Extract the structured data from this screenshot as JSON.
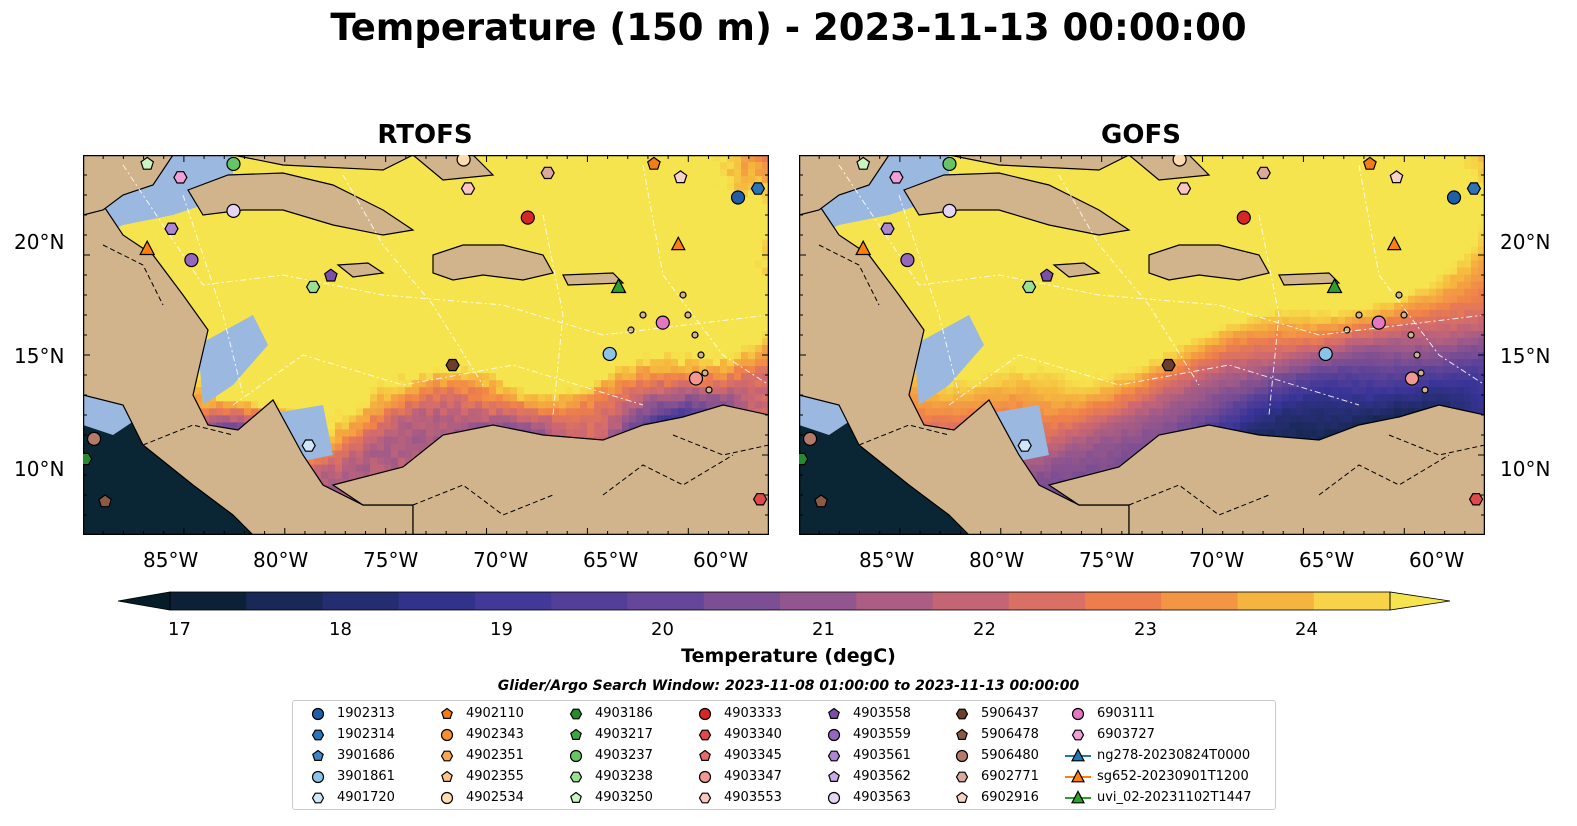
{
  "title": "Temperature (150 m) - 2023-11-13 00:00:00",
  "panels": [
    {
      "title": "RTOFS",
      "variant": "rtofs"
    },
    {
      "title": "GOFS",
      "variant": "gofs"
    }
  ],
  "x_ticks": [
    "85°W",
    "80°W",
    "75°W",
    "70°W",
    "65°W",
    "60°W"
  ],
  "y_ticks": [
    "20°N",
    "15°N",
    "10°N"
  ],
  "colorbar": {
    "label": "Temperature (degC)",
    "ticks": [
      "17",
      "18",
      "19",
      "20",
      "21",
      "22",
      "23",
      "24"
    ],
    "vmin": 16.5,
    "vmax": 24.5,
    "extend": "both"
  },
  "colors": {
    "land": "#d2b48c",
    "shallow": "#9ab8e0",
    "cold": "#0a2534",
    "warm": "#f6e04e"
  },
  "search_window": "Glider/Argo Search Window: 2023-11-08 01:00:00 to 2023-11-13 00:00:00",
  "legend": [
    {
      "label": "1902313",
      "marker": "circle",
      "color": "#1f5fa8"
    },
    {
      "label": "1902314",
      "marker": "hexagon",
      "color": "#2a74b8"
    },
    {
      "label": "3901686",
      "marker": "pentagon",
      "color": "#3b86c8"
    },
    {
      "label": "3901861",
      "marker": "circle",
      "color": "#8cc3e8"
    },
    {
      "label": "4901720",
      "marker": "hexagon",
      "color": "#cfe6f8"
    },
    {
      "label": "4902110",
      "marker": "pentagon",
      "color": "#f07d1a"
    },
    {
      "label": "4902343",
      "marker": "circle",
      "color": "#f5922e"
    },
    {
      "label": "4902351",
      "marker": "hexagon",
      "color": "#f8a94f"
    },
    {
      "label": "4902355",
      "marker": "pentagon",
      "color": "#fbc585"
    },
    {
      "label": "4902534",
      "marker": "circle",
      "color": "#fddcb0"
    },
    {
      "label": "4903186",
      "marker": "hexagon",
      "color": "#238b2e"
    },
    {
      "label": "4903217",
      "marker": "pentagon",
      "color": "#3aa83f"
    },
    {
      "label": "4903237",
      "marker": "circle",
      "color": "#66c466"
    },
    {
      "label": "4903238",
      "marker": "hexagon",
      "color": "#9adf93"
    },
    {
      "label": "4903250",
      "marker": "pentagon",
      "color": "#c9f5c0"
    },
    {
      "label": "4903333",
      "marker": "circle",
      "color": "#d62728"
    },
    {
      "label": "4903340",
      "marker": "hexagon",
      "color": "#e0484a"
    },
    {
      "label": "4903345",
      "marker": "pentagon",
      "color": "#ea6a6a"
    },
    {
      "label": "4903347",
      "marker": "circle",
      "color": "#f39793"
    },
    {
      "label": "4903553",
      "marker": "hexagon",
      "color": "#fbc6c2"
    },
    {
      "label": "4903558",
      "marker": "pentagon",
      "color": "#7b4fa8"
    },
    {
      "label": "4903559",
      "marker": "circle",
      "color": "#9466bd"
    },
    {
      "label": "4903561",
      "marker": "hexagon",
      "color": "#ad86d3"
    },
    {
      "label": "4903562",
      "marker": "pentagon",
      "color": "#c9aae6"
    },
    {
      "label": "4903563",
      "marker": "circle",
      "color": "#e6d4f5"
    },
    {
      "label": "5906437",
      "marker": "hexagon",
      "color": "#6b3f2c"
    },
    {
      "label": "5906478",
      "marker": "pentagon",
      "color": "#8c5a44"
    },
    {
      "label": "5906480",
      "marker": "circle",
      "color": "#b5796a"
    },
    {
      "label": "6902771",
      "marker": "hexagon",
      "color": "#dba89c"
    },
    {
      "label": "6902916",
      "marker": "pentagon",
      "color": "#f7d2c8"
    },
    {
      "label": "6903111",
      "marker": "circle",
      "color": "#e377c2"
    },
    {
      "label": "6903727",
      "marker": "hexagon",
      "color": "#f0a0d8"
    },
    {
      "label": "ng278-20230824T0000",
      "marker": "triangle-line",
      "color": "#1f77b4"
    },
    {
      "label": "sg652-20230901T1200",
      "marker": "triangle-line",
      "color": "#ff7f0e"
    },
    {
      "label": "uvi_02-20231102T1447",
      "marker": "triangle-line",
      "color": "#2ca02c"
    }
  ]
}
